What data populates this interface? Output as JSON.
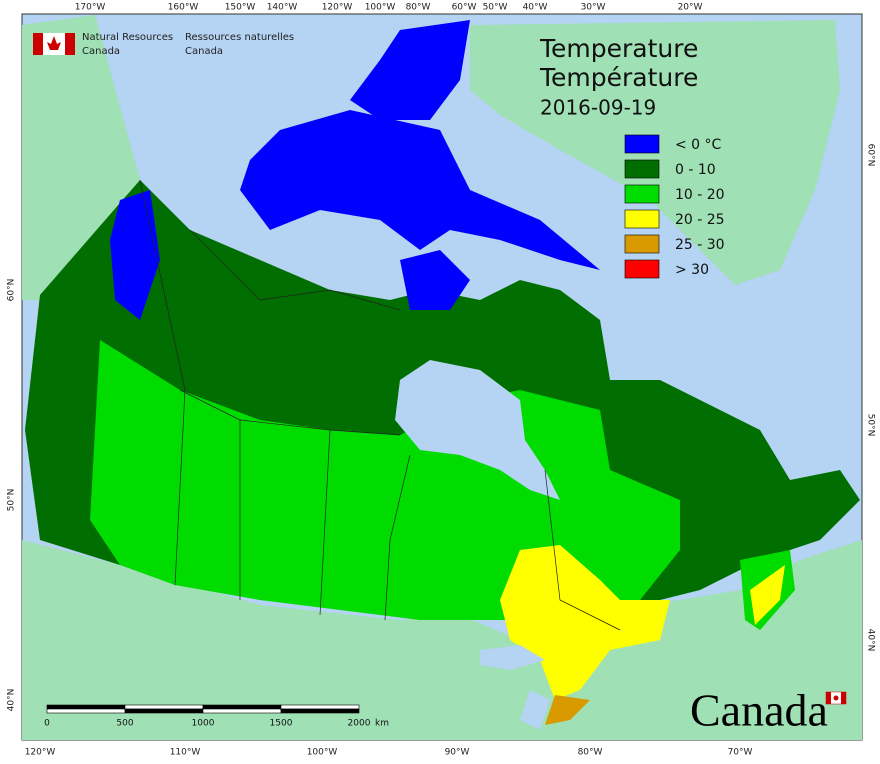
{
  "header": {
    "org_en": [
      "Natural Resources",
      "Canada"
    ],
    "org_fr": [
      "Ressources naturelles",
      "Canada"
    ]
  },
  "title": [
    "Temperature",
    "Température"
  ],
  "date": "2016-09-19",
  "legend": [
    {
      "label": "< 0 °C",
      "color": "#0000ff"
    },
    {
      "label": "0 - 10",
      "color": "#006e00"
    },
    {
      "label": "10 - 20",
      "color": "#00dc00"
    },
    {
      "label": "20 - 25",
      "color": "#ffff00"
    },
    {
      "label": "25 - 30",
      "color": "#d99a00"
    },
    {
      "label": "> 30",
      "color": "#ff0000"
    }
  ],
  "graticule": {
    "top": [
      "170°W",
      "160°W",
      "150°W",
      "140°W",
      "120°W",
      "100°W",
      "80°W",
      "60°W",
      "50°W",
      "40°W",
      "30°W",
      "20°W"
    ],
    "bottom": [
      "120°W",
      "110°W",
      "100°W",
      "90°W",
      "80°W",
      "70°W"
    ],
    "left": [
      "60°N",
      "50°N",
      "40°N"
    ],
    "right": [
      "60°N",
      "50°N",
      "40°N"
    ]
  },
  "scale": {
    "ticks": [
      "0",
      "500",
      "1000",
      "1500",
      "2000"
    ],
    "unit": "km"
  },
  "wordmark": "Canada"
}
